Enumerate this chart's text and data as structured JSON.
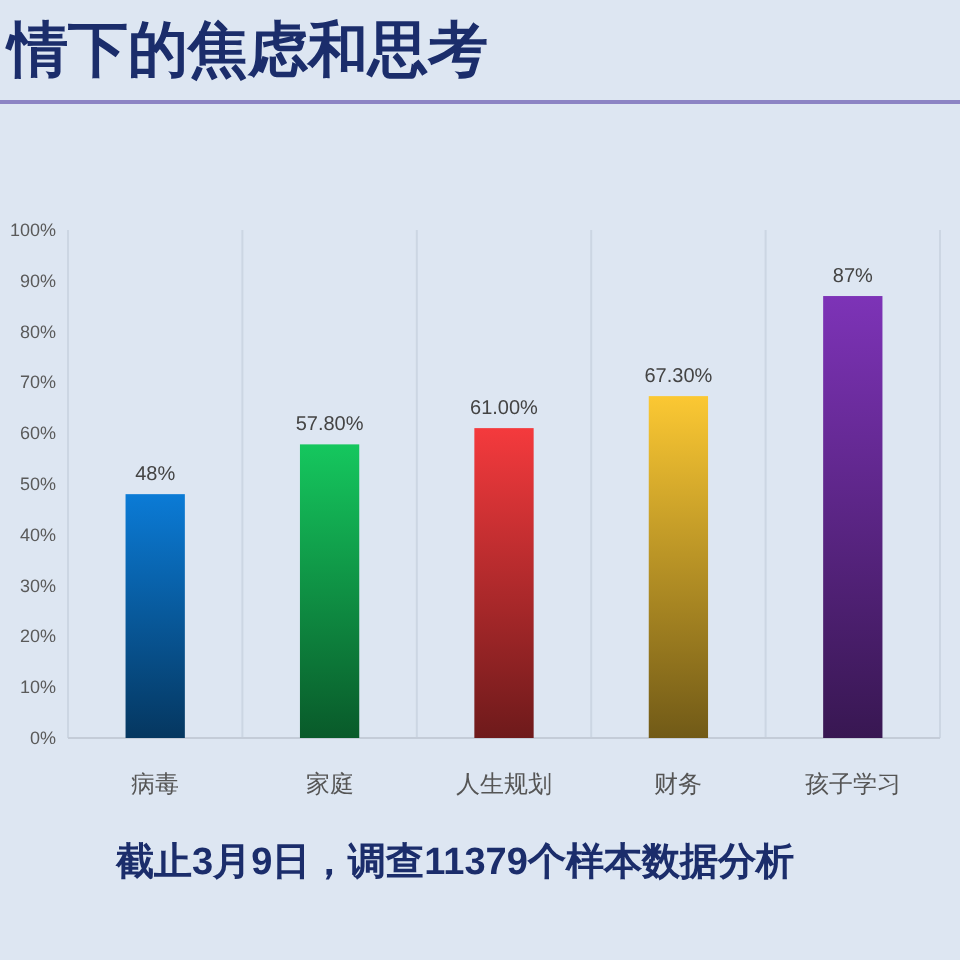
{
  "chart_data": {
    "type": "bar",
    "title": "情下的焦虑和思考",
    "categories": [
      "病毒",
      "家庭",
      "人生规划",
      "财务",
      "孩子学习"
    ],
    "values": [
      48,
      57.8,
      61,
      67.3,
      87
    ],
    "colors": [
      "#0b7bd6",
      "#15c75e",
      "#f43a3d",
      "#fbc833",
      "#7d33b7"
    ],
    "value_labels": [
      "48%",
      "57.80%",
      "61.00%",
      "67.30%",
      "87%"
    ],
    "ylim": [
      0,
      100
    ],
    "yticks": [
      {
        "value": 0,
        "label": "0%"
      },
      {
        "value": 10,
        "label": "10%"
      },
      {
        "value": 20,
        "label": "20%"
      },
      {
        "value": 30,
        "label": "30%"
      },
      {
        "value": 40,
        "label": "40%"
      },
      {
        "value": 50,
        "label": "50%"
      },
      {
        "value": 60,
        "label": "60%"
      },
      {
        "value": 70,
        "label": "70%"
      },
      {
        "value": 80,
        "label": "80%"
      },
      {
        "value": 90,
        "label": "90%"
      },
      {
        "value": 100,
        "label": "100%"
      }
    ],
    "grid": "x",
    "annotations": [
      "截止3月9日，调查11379个样本数据分析"
    ]
  }
}
